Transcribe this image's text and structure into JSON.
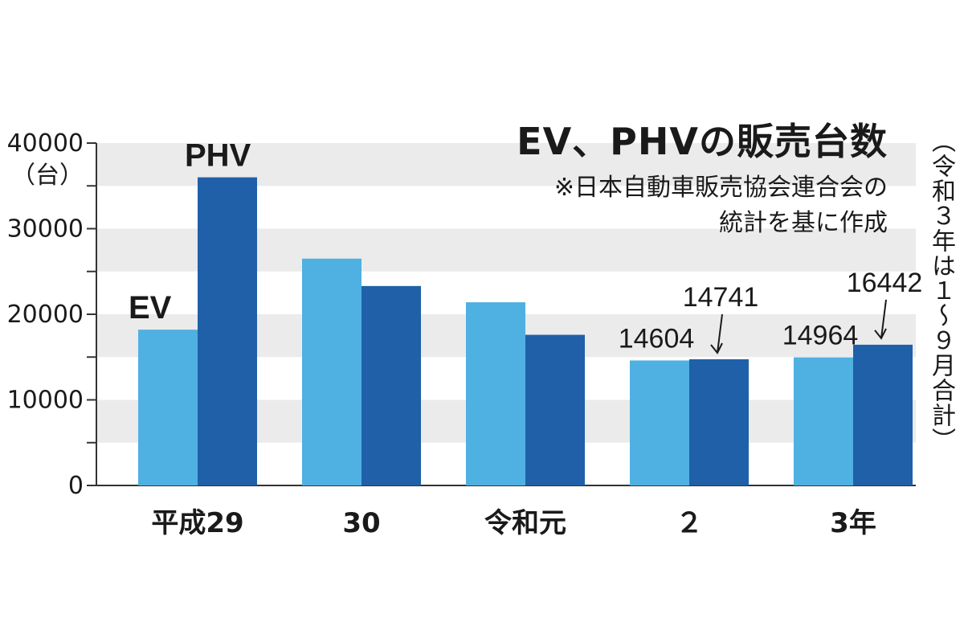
{
  "chart_data": {
    "type": "bar",
    "title": "EV、PHVの販売台数",
    "note": [
      "※日本自動車販売協会連合会の",
      "統計を基に作成"
    ],
    "side_note": "（令和３年は１〜９月合計）",
    "yunit": "（台）",
    "ylim": [
      0,
      40000
    ],
    "yticks": [
      0,
      10000,
      20000,
      30000,
      40000
    ],
    "ytick_labels": [
      "0",
      "10000",
      "20000",
      "30000",
      "40000"
    ],
    "categories": [
      "平成29",
      "30",
      "令和元",
      "２",
      "3年"
    ],
    "series": [
      {
        "name": "EV",
        "color": "#4fb0e2",
        "values": [
          18200,
          26500,
          21400,
          14604,
          14964
        ]
      },
      {
        "name": "PHV",
        "color": "#1f60a8",
        "values": [
          36000,
          23300,
          17600,
          14741,
          16442
        ]
      }
    ],
    "data_labels": [
      {
        "text": "14604",
        "series": 0,
        "category": 3
      },
      {
        "text": "14741",
        "series": 1,
        "category": 3,
        "arrow": true
      },
      {
        "text": "14964",
        "series": 0,
        "category": 4
      },
      {
        "text": "16442",
        "series": 1,
        "category": 4,
        "arrow": true
      }
    ],
    "grid": "alternating bands",
    "band_color": "#ebebeb",
    "axis_color": "#333333"
  }
}
